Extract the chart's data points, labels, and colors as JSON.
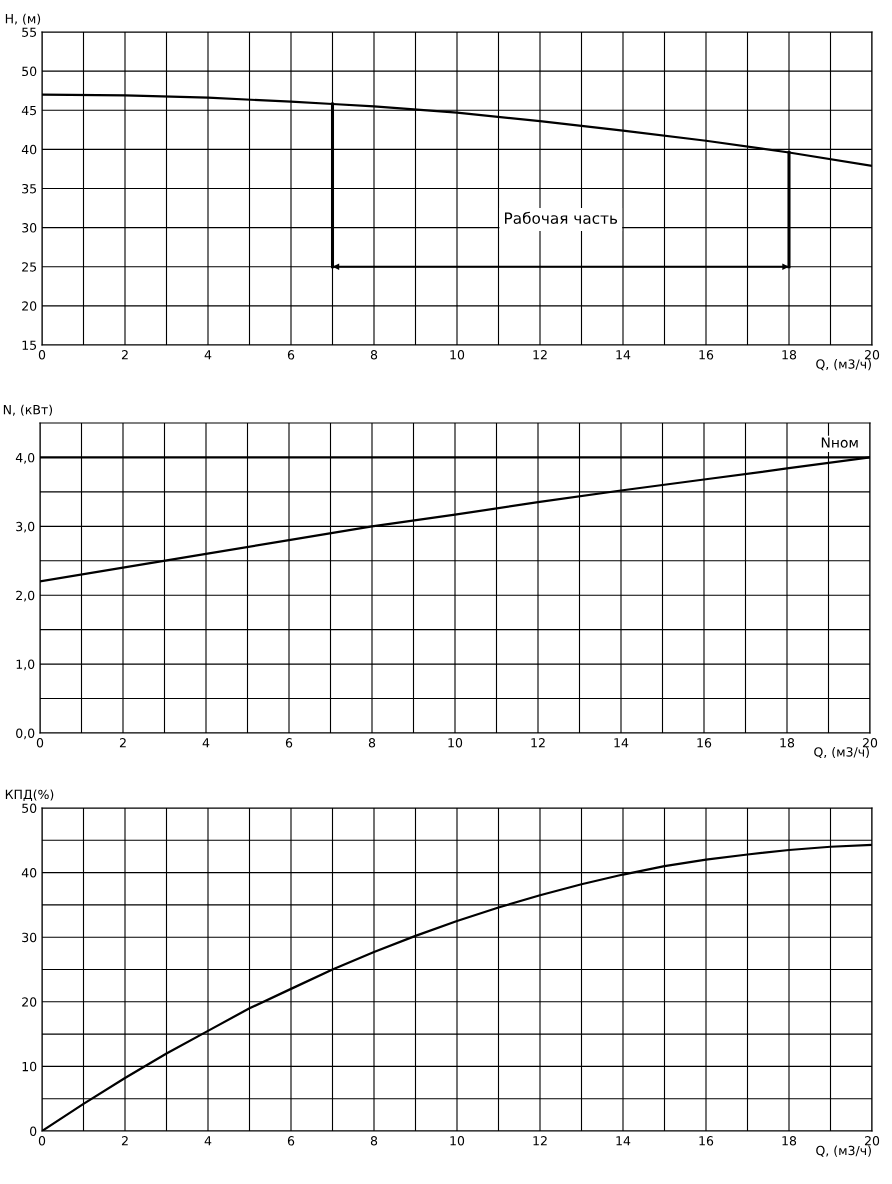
{
  "chart_data": [
    {
      "type": "line",
      "ylabel": "H, (м)",
      "xlabel": "Q, (м3/ч)",
      "grid": true,
      "legend": false,
      "marker": "none",
      "line_style": "solid",
      "xlim": [
        0,
        20
      ],
      "ylim": [
        15,
        55
      ],
      "xticks": [
        0,
        {
          "value": 1,
          "label": null
        },
        2,
        {
          "value": 3,
          "label": null
        },
        4,
        {
          "value": 5,
          "label": null
        },
        6,
        {
          "value": 7,
          "label": null
        },
        8,
        {
          "value": 9,
          "label": null
        },
        10,
        {
          "value": 11,
          "label": null
        },
        12,
        {
          "value": 13,
          "label": null
        },
        14,
        {
          "value": 15,
          "label": null
        },
        16,
        {
          "value": 17,
          "label": null
        },
        18,
        {
          "value": 19,
          "label": null
        },
        20
      ],
      "yticks": [
        15,
        20,
        25,
        30,
        35,
        40,
        45,
        50,
        55
      ],
      "x": [
        0,
        2,
        4,
        6,
        7,
        8,
        10,
        12,
        14,
        16,
        18,
        20
      ],
      "series": [
        {
          "color": "#000000",
          "values": [
            47,
            46.9,
            46.6,
            46.1,
            45.8,
            45.5,
            44.7,
            43.6,
            42.4,
            41.1,
            39.6,
            37.9
          ]
        },
        {
          "color": "#000000",
          "x": [
            7,
            18
          ],
          "values": [
            25,
            25
          ],
          "errors": [
            [
              25,
              45.8
            ],
            [
              25,
              39.6
            ]
          ]
        }
      ],
      "annotations": [
        {
          "text": "Рабочая часть",
          "x": 12.5,
          "y": 25
        }
      ]
    },
    {
      "type": "line",
      "ylabel": "N, (кВт)",
      "xlabel": "Q, (м3/ч)",
      "grid": true,
      "legend": false,
      "marker": "none",
      "line_style": "solid",
      "xlim": [
        0,
        20
      ],
      "ylim": [
        0,
        4.5
      ],
      "xticks": [
        0,
        {
          "value": 1,
          "label": null
        },
        2,
        {
          "value": 3,
          "label": null
        },
        4,
        {
          "value": 5,
          "label": null
        },
        6,
        {
          "value": 7,
          "label": null
        },
        8,
        {
          "value": 9,
          "label": null
        },
        10,
        {
          "value": 11,
          "label": null
        },
        12,
        {
          "value": 13,
          "label": null
        },
        14,
        {
          "value": 15,
          "label": null
        },
        16,
        {
          "value": 17,
          "label": null
        },
        18,
        {
          "value": 19,
          "label": null
        },
        20
      ],
      "yticks": [
        {
          "value": 0,
          "label": "0,0"
        },
        {
          "value": 0.5,
          "label": null
        },
        {
          "value": 1,
          "label": "1,0"
        },
        {
          "value": 1.5,
          "label": null
        },
        {
          "value": 2,
          "label": "2,0"
        },
        {
          "value": 2.5,
          "label": null
        },
        {
          "value": 3,
          "label": "3,0"
        },
        {
          "value": 3.5,
          "label": null
        },
        {
          "value": 4,
          "label": "4,0"
        }
      ],
      "x": [
        0,
        2,
        4,
        6,
        8,
        10,
        12,
        14,
        16,
        18,
        20
      ],
      "series": [
        {
          "color": "#000000",
          "values": [
            2.2,
            2.4,
            2.6,
            2.8,
            3.0,
            3.17,
            3.35,
            3.52,
            3.68,
            3.84,
            4.0
          ]
        }
      ],
      "ref_lines": [
        {
          "axis": "y",
          "value": 4,
          "label": "Nном",
          "color": "#000000",
          "line_style": "solid"
        }
      ]
    },
    {
      "type": "line",
      "ylabel": "КПД(%)",
      "xlabel": "Q, (м3/ч)",
      "grid": true,
      "legend": false,
      "marker": "none",
      "line_style": "solid",
      "xlim": [
        0,
        20
      ],
      "ylim": [
        0,
        50
      ],
      "xticks": [
        0,
        {
          "value": 1,
          "label": null
        },
        2,
        {
          "value": 3,
          "label": null
        },
        4,
        {
          "value": 5,
          "label": null
        },
        6,
        {
          "value": 7,
          "label": null
        },
        8,
        {
          "value": 9,
          "label": null
        },
        10,
        {
          "value": 11,
          "label": null
        },
        12,
        {
          "value": 13,
          "label": null
        },
        14,
        {
          "value": 15,
          "label": null
        },
        16,
        {
          "value": 17,
          "label": null
        },
        18,
        {
          "value": 19,
          "label": null
        },
        20
      ],
      "yticks": [
        0,
        {
          "value": 5,
          "label": null
        },
        10,
        {
          "value": 15,
          "label": null
        },
        20,
        {
          "value": 25,
          "label": null
        },
        30,
        {
          "value": 35,
          "label": null
        },
        40,
        {
          "value": 45,
          "label": null
        },
        50
      ],
      "x": [
        0,
        1,
        2,
        3,
        4,
        5,
        6,
        7,
        8,
        9,
        10,
        11,
        12,
        13,
        14,
        15,
        16,
        17,
        18,
        19,
        20
      ],
      "series": [
        {
          "color": "#000000",
          "values": [
            0,
            4.2,
            8.2,
            12,
            15.5,
            19,
            22,
            25,
            27.7,
            30.2,
            32.5,
            34.6,
            36.5,
            38.2,
            39.7,
            41,
            42,
            42.8,
            43.5,
            44,
            44.3
          ]
        }
      ]
    }
  ]
}
